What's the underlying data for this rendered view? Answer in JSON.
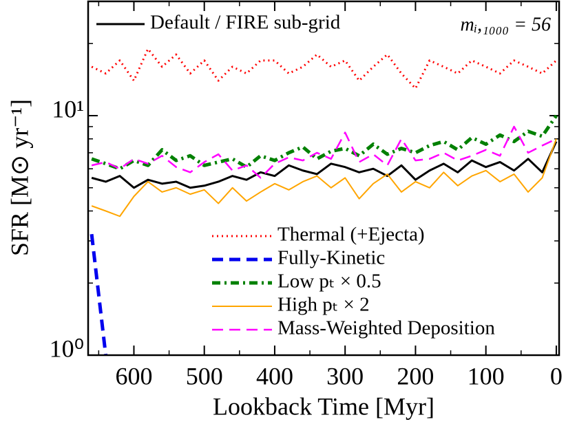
{
  "chart_data": {
    "type": "line",
    "xlabel": "Lookback Time  [Myr]",
    "ylabel": "SFR  [M⊙ yr⁻¹]",
    "annotation": "mᵢ,₁₀₀₀ = 56",
    "x": [
      660,
      640,
      620,
      600,
      580,
      560,
      540,
      520,
      500,
      480,
      460,
      440,
      420,
      400,
      380,
      360,
      340,
      320,
      300,
      280,
      260,
      240,
      220,
      200,
      180,
      160,
      140,
      120,
      100,
      80,
      60,
      40,
      20,
      0
    ],
    "series": [
      {
        "name": "Default / FIRE sub-grid",
        "color": "#000000",
        "linestyle": "solid",
        "width": 3,
        "values": [
          5.5,
          5.3,
          5.6,
          5.0,
          5.4,
          5.2,
          5.3,
          5.0,
          5.1,
          5.3,
          5.6,
          5.4,
          5.8,
          5.6,
          6.2,
          5.9,
          5.7,
          6.3,
          6.1,
          5.8,
          6.0,
          5.6,
          6.2,
          5.4,
          5.9,
          6.3,
          5.8,
          6.5,
          6.1,
          6.4,
          5.9,
          6.6,
          5.8,
          7.8
        ]
      },
      {
        "name": "Thermal (+Ejecta)",
        "color": "#ff0000",
        "linestyle": "dotted",
        "width": 3,
        "values": [
          16,
          15,
          17,
          14,
          19,
          16,
          18,
          15,
          17,
          14,
          16,
          15,
          17,
          17,
          15,
          16,
          18,
          16,
          17,
          14,
          16,
          18,
          15,
          13,
          17,
          16,
          15,
          17,
          16,
          15,
          17,
          16,
          15,
          17
        ]
      },
      {
        "name": "Fully-Kinetic",
        "color": "#0000ee",
        "linestyle": "dashed",
        "width": 5,
        "values": [
          3.2,
          1.0,
          null,
          null,
          null,
          null,
          null,
          null,
          null,
          null,
          null,
          null,
          null,
          null,
          null,
          null,
          null,
          null,
          null,
          null,
          null,
          null,
          null,
          null,
          null,
          null,
          null,
          null,
          null,
          null,
          null,
          null,
          null,
          null
        ]
      },
      {
        "name": "Low pₜ × 0.5",
        "color": "#008000",
        "linestyle": "dashdot",
        "width": 5,
        "values": [
          6.6,
          6.3,
          6.0,
          6.5,
          6.2,
          7.2,
          6.5,
          6.8,
          6.2,
          6.4,
          6.6,
          6.1,
          6.8,
          6.5,
          7.0,
          7.4,
          6.6,
          7.1,
          7.3,
          6.8,
          7.6,
          6.9,
          7.3,
          7.0,
          7.5,
          7.8,
          7.2,
          8.1,
          7.6,
          8.3,
          7.8,
          8.6,
          8.2,
          10.0
        ]
      },
      {
        "name": "High pₜ × 2",
        "color": "#ffa500",
        "linestyle": "solid",
        "width": 2,
        "values": [
          4.2,
          4.0,
          3.8,
          4.6,
          5.3,
          4.8,
          5.0,
          4.7,
          4.9,
          4.3,
          5.0,
          4.4,
          4.8,
          5.2,
          4.9,
          5.3,
          5.6,
          5.0,
          5.5,
          4.5,
          5.2,
          5.7,
          4.8,
          5.3,
          5.0,
          5.8,
          5.1,
          5.6,
          5.9,
          5.3,
          5.7,
          4.8,
          5.5,
          8.0
        ]
      },
      {
        "name": "Mass-Weighted Deposition",
        "color": "#ff00ff",
        "linestyle": "dashed",
        "width": 2.5,
        "values": [
          6.2,
          6.4,
          6.0,
          6.6,
          6.3,
          6.8,
          6.1,
          5.8,
          6.4,
          6.9,
          5.9,
          6.2,
          5.5,
          6.3,
          6.7,
          6.5,
          7.0,
          6.6,
          8.5,
          6.4,
          6.9,
          6.2,
          8.0,
          6.5,
          6.6,
          7.0,
          6.5,
          6.8,
          7.2,
          6.8,
          9.0,
          7.0,
          7.5,
          8.0
        ]
      }
    ],
    "xlim": [
      665,
      -4
    ],
    "xticks": [
      600,
      500,
      400,
      300,
      200,
      100,
      0
    ],
    "xminorticks": [
      650,
      550,
      450,
      350,
      250,
      150,
      50
    ],
    "ylim": [
      1,
      30
    ],
    "ylog": true,
    "yticks": [
      {
        "value": 1,
        "label": "10⁰"
      },
      {
        "value": 10,
        "label": "10¹"
      }
    ],
    "yminorticks": [
      2,
      3,
      4,
      5,
      6,
      7,
      8,
      9,
      20,
      30
    ]
  }
}
